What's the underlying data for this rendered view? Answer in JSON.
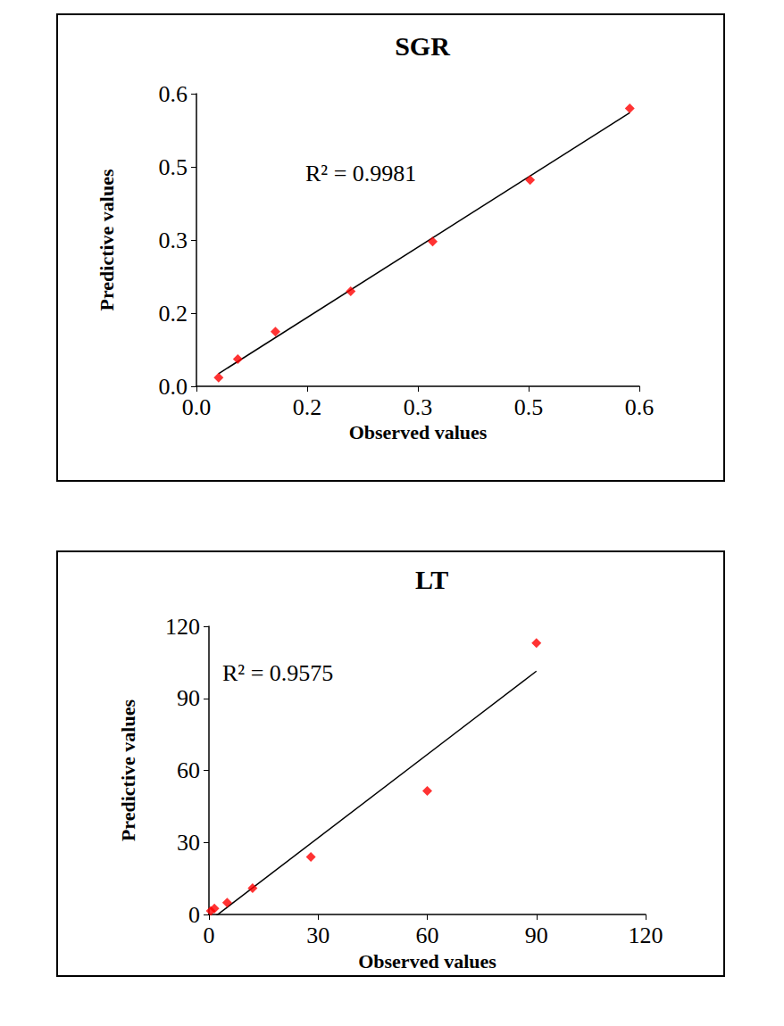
{
  "chart_data": [
    {
      "type": "scatter",
      "title": "SGR",
      "x_label": "Observed values",
      "y_label": "Predictive values",
      "annotations": [
        "R² = 0.9981"
      ],
      "color": "#ff0000",
      "marker": "diamond",
      "line_style": "solid",
      "grid": false,
      "x": [
        0.03,
        0.056,
        0.107,
        0.209,
        0.32,
        0.452,
        0.587
      ],
      "values": [
        0.018,
        0.056,
        0.112,
        0.195,
        0.297,
        0.423,
        0.57
      ],
      "xlim": [
        0,
        0.6
      ],
      "ylim": [
        0,
        0.6
      ],
      "xticks": [
        {
          "value": 0,
          "label": "0.0"
        },
        {
          "value": 0.15,
          "label": "0.2"
        },
        {
          "value": 0.3,
          "label": "0.3"
        },
        {
          "value": 0.45,
          "label": "0.5"
        },
        {
          "value": 0.6,
          "label": "0.6"
        }
      ],
      "yticks": [
        {
          "value": 0,
          "label": "0.0"
        },
        {
          "value": 0.15,
          "label": "0.2"
        },
        {
          "value": 0.3,
          "label": "0.3"
        },
        {
          "value": 0.45,
          "label": "0.5"
        },
        {
          "value": 0.6,
          "label": "0.6"
        }
      ]
    },
    {
      "type": "scatter",
      "title": "LT",
      "x_label": "Observed values",
      "y_label": "Predictive values",
      "annotations": [
        "R² = 0.9575"
      ],
      "color": "#ff0000",
      "marker": "diamond",
      "line_style": "solid",
      "grid": false,
      "x": [
        0.5,
        1.5,
        5,
        12,
        28,
        60,
        90
      ],
      "values": [
        1.5,
        2.5,
        5,
        11,
        24,
        51.5,
        113
      ],
      "xlim": [
        0,
        120
      ],
      "ylim": [
        0,
        120
      ],
      "xticks": [
        0,
        30,
        60,
        90,
        120
      ],
      "yticks": [
        0,
        30,
        60,
        90,
        120
      ]
    }
  ]
}
